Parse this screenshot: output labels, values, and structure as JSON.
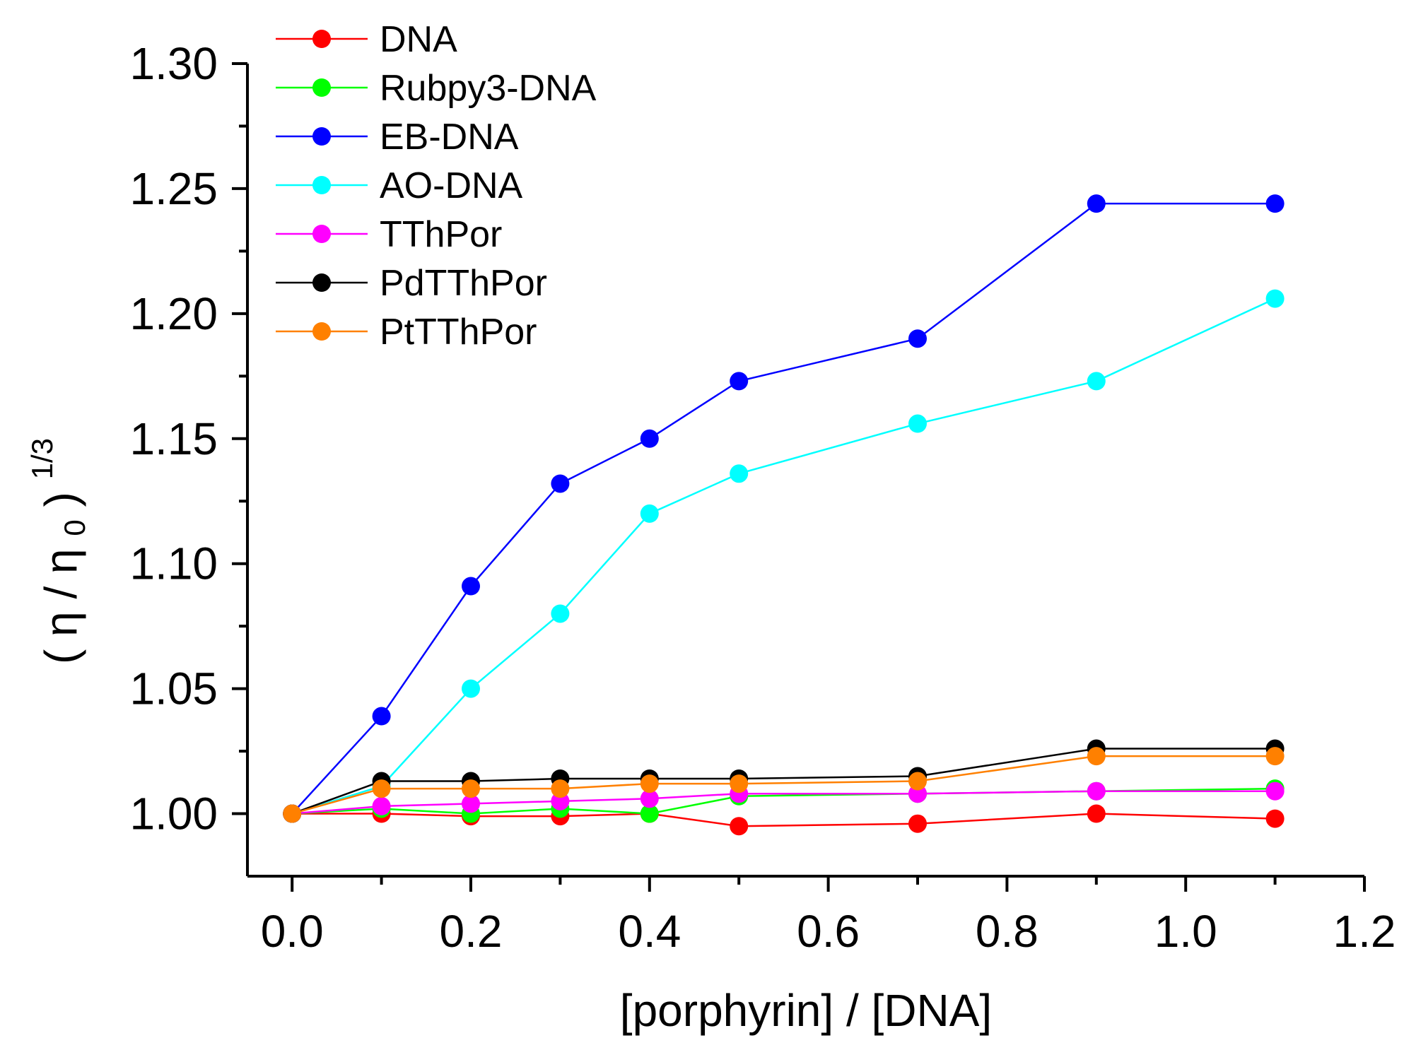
{
  "chart_data": {
    "type": "line",
    "title": "",
    "xlabel": "[porphyrin] / [DNA]",
    "ylabel": {
      "open": "(",
      "eta": "η",
      "slash": "/",
      "eta0": "η",
      "sub": "0",
      "close": ")",
      "power": "1/3"
    },
    "xlim": [
      -0.05,
      1.2
    ],
    "ylim": [
      0.975,
      1.3
    ],
    "x_ticks": [
      "0.0",
      "0.2",
      "0.4",
      "0.6",
      "0.8",
      "1.0",
      "1.2"
    ],
    "y_ticks": [
      "1.00",
      "1.05",
      "1.10",
      "1.15",
      "1.20",
      "1.25",
      "1.30"
    ],
    "legend_position": "top-left",
    "x": [
      0.0,
      0.1,
      0.2,
      0.3,
      0.4,
      0.5,
      0.7,
      0.9,
      1.1
    ],
    "series": [
      {
        "name": "DNA",
        "color": "#ff0000",
        "values": [
          1.0,
          1.0,
          0.999,
          0.999,
          1.0,
          0.995,
          0.996,
          1.0,
          0.998
        ]
      },
      {
        "name": "Rubpy3-DNA",
        "color": "#00ff00",
        "values": [
          1.0,
          1.002,
          1.0,
          1.002,
          1.0,
          1.007,
          1.008,
          1.009,
          1.01
        ]
      },
      {
        "name": "EB-DNA",
        "color": "#0000ff",
        "values": [
          1.0,
          1.039,
          1.091,
          1.132,
          1.15,
          1.173,
          1.19,
          1.244,
          1.244
        ]
      },
      {
        "name": "AO-DNA",
        "color": "#00ffff",
        "values": [
          1.0,
          1.011,
          1.05,
          1.08,
          1.12,
          1.136,
          1.156,
          1.173,
          1.206
        ]
      },
      {
        "name": "TThPor",
        "color": "#ff00ff",
        "values": [
          1.0,
          1.003,
          1.004,
          1.005,
          1.006,
          1.008,
          1.008,
          1.009,
          1.009
        ]
      },
      {
        "name": "PdTThPor",
        "color": "#000000",
        "values": [
          1.0,
          1.013,
          1.013,
          1.014,
          1.014,
          1.014,
          1.015,
          1.026,
          1.026
        ]
      },
      {
        "name": "PtTThPor",
        "color": "#ff8000",
        "values": [
          1.0,
          1.01,
          1.01,
          1.01,
          1.012,
          1.012,
          1.013,
          1.023,
          1.023
        ]
      }
    ]
  }
}
